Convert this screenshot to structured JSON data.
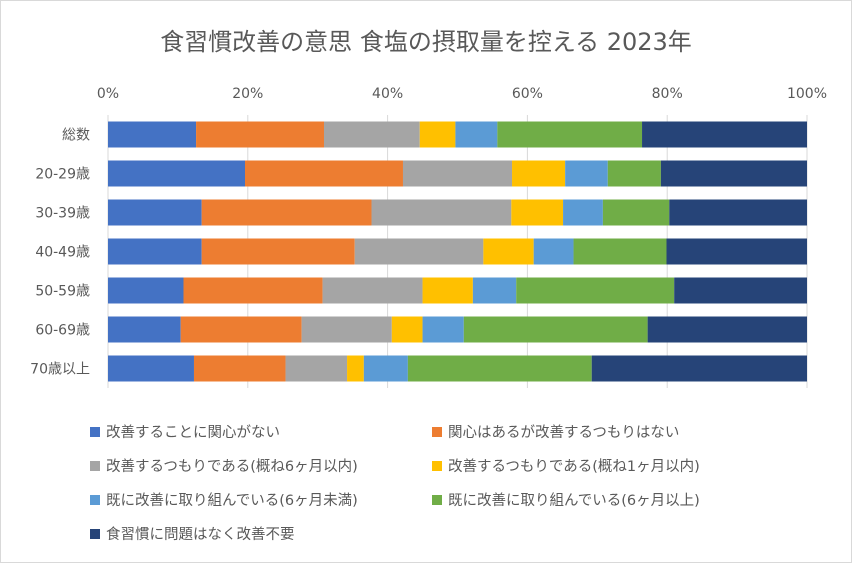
{
  "chart_data": {
    "type": "bar",
    "orientation": "horizontal",
    "stacked": "100%",
    "title": "食習慣改善の意思 食塩の摂取量を控える 2023年",
    "categories": [
      "総数",
      "20-29歳",
      "30-39歳",
      "40-49歳",
      "50-59歳",
      "60-69歳",
      "70歳以上"
    ],
    "xlim": [
      0,
      100
    ],
    "xticks": [
      "0%",
      "20%",
      "40%",
      "60%",
      "80%",
      "100%"
    ],
    "grid": true,
    "legend_position": "bottom",
    "series": [
      {
        "name": "改善することに関心がない",
        "color": "#4472c4",
        "values": [
          12.6,
          19.6,
          13.4,
          13.4,
          10.8,
          10.4,
          12.3
        ]
      },
      {
        "name": "関心はあるが改善するつもりはない",
        "color": "#ed7d31",
        "values": [
          18.3,
          22.6,
          24.3,
          21.9,
          19.9,
          17.3,
          13.1
        ]
      },
      {
        "name": "改善するつもりである(概ね6ヶ月以内)",
        "color": "#a5a5a5",
        "values": [
          13.7,
          15.6,
          20.0,
          18.4,
          14.3,
          12.9,
          8.8
        ]
      },
      {
        "name": "改善するつもりである(概ね1ヶ月以内)",
        "color": "#ffc000",
        "values": [
          5.1,
          7.6,
          7.4,
          7.2,
          7.2,
          4.4,
          2.4
        ]
      },
      {
        "name": "既に改善に取り組んでいる(6ヶ月未満)",
        "color": "#5b9bd5",
        "values": [
          6.0,
          6.1,
          5.7,
          5.7,
          6.2,
          5.9,
          6.3
        ]
      },
      {
        "name": "既に改善に取り組んでいる(6ヶ月以上)",
        "color": "#70ad47",
        "values": [
          20.7,
          7.6,
          9.5,
          13.3,
          22.6,
          26.3,
          26.3
        ]
      },
      {
        "name": "食習慣に問題はなく改善不要",
        "color": "#264478",
        "values": [
          23.6,
          20.9,
          19.7,
          20.1,
          19.0,
          22.8,
          30.8
        ]
      }
    ]
  }
}
